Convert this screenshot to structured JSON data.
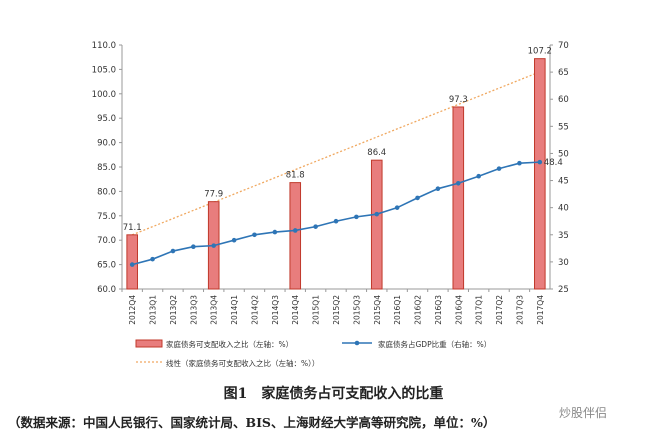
{
  "chart_data": {
    "type": "bar+line",
    "categories": [
      "2012Q4",
      "2013Q1",
      "2013Q2",
      "2013Q3",
      "2013Q4",
      "2014Q1",
      "2014Q2",
      "2014Q3",
      "2014Q4",
      "2015Q1",
      "2015Q2",
      "2015Q3",
      "2015Q4",
      "2016Q1",
      "2016Q2",
      "2016Q3",
      "2016Q4",
      "2017Q1",
      "2017Q2",
      "2017Q3",
      "2017Q4"
    ],
    "bar_series": {
      "name": "家庭债务可支配收入之比（左轴：%）",
      "axis": "left",
      "color": "#e87d7d",
      "edge_color": "#c0392b",
      "values": [
        71.1,
        null,
        null,
        null,
        77.9,
        null,
        null,
        null,
        81.8,
        null,
        null,
        null,
        86.4,
        null,
        null,
        null,
        97.3,
        null,
        null,
        null,
        107.2
      ],
      "labels": [
        "71.1",
        "77.9",
        "81.8",
        "86.4",
        "97.3",
        "107.2"
      ]
    },
    "line_series": {
      "name": "家庭债务占GDP比重（右轴：%）",
      "axis": "right",
      "color": "#2e75b6",
      "values": [
        29.5,
        30.5,
        32.0,
        32.8,
        33.0,
        34.0,
        35.0,
        35.5,
        35.8,
        36.5,
        37.5,
        38.3,
        38.8,
        40.0,
        41.8,
        43.5,
        44.5,
        45.8,
        47.2,
        48.2,
        48.4
      ],
      "end_label": "48.4"
    },
    "trend_series": {
      "name": "线性（家庭债务可支配收入之比（左轴：%））",
      "color": "#f0a860",
      "start": 71.1,
      "end": 104.5
    },
    "left_axis": {
      "min": 60,
      "max": 110,
      "ticks": [
        "60.0",
        "65.0",
        "70.0",
        "75.0",
        "80.0",
        "85.0",
        "90.0",
        "95.0",
        "100.0",
        "105.0",
        "110.0"
      ]
    },
    "right_axis": {
      "min": 25,
      "max": 70,
      "ticks": [
        "25",
        "30",
        "35",
        "40",
        "45",
        "50",
        "55",
        "60",
        "65",
        "70"
      ]
    },
    "legend": {
      "placement": "bottom",
      "items": [
        "家庭债务可支配收入之比（左轴：%）",
        "家庭债务占GDP比重（右轴：%）",
        "线性（家庭债务可支配收入之比（左轴：%））"
      ]
    },
    "grid": false
  },
  "caption": "图1　家庭债务占可支配收入的比重",
  "source_note": "（数据来源：中国人民银行、国家统计局、BIS、上海财经大学高等研究院，单位：%）",
  "watermark": "炒股伴侣"
}
